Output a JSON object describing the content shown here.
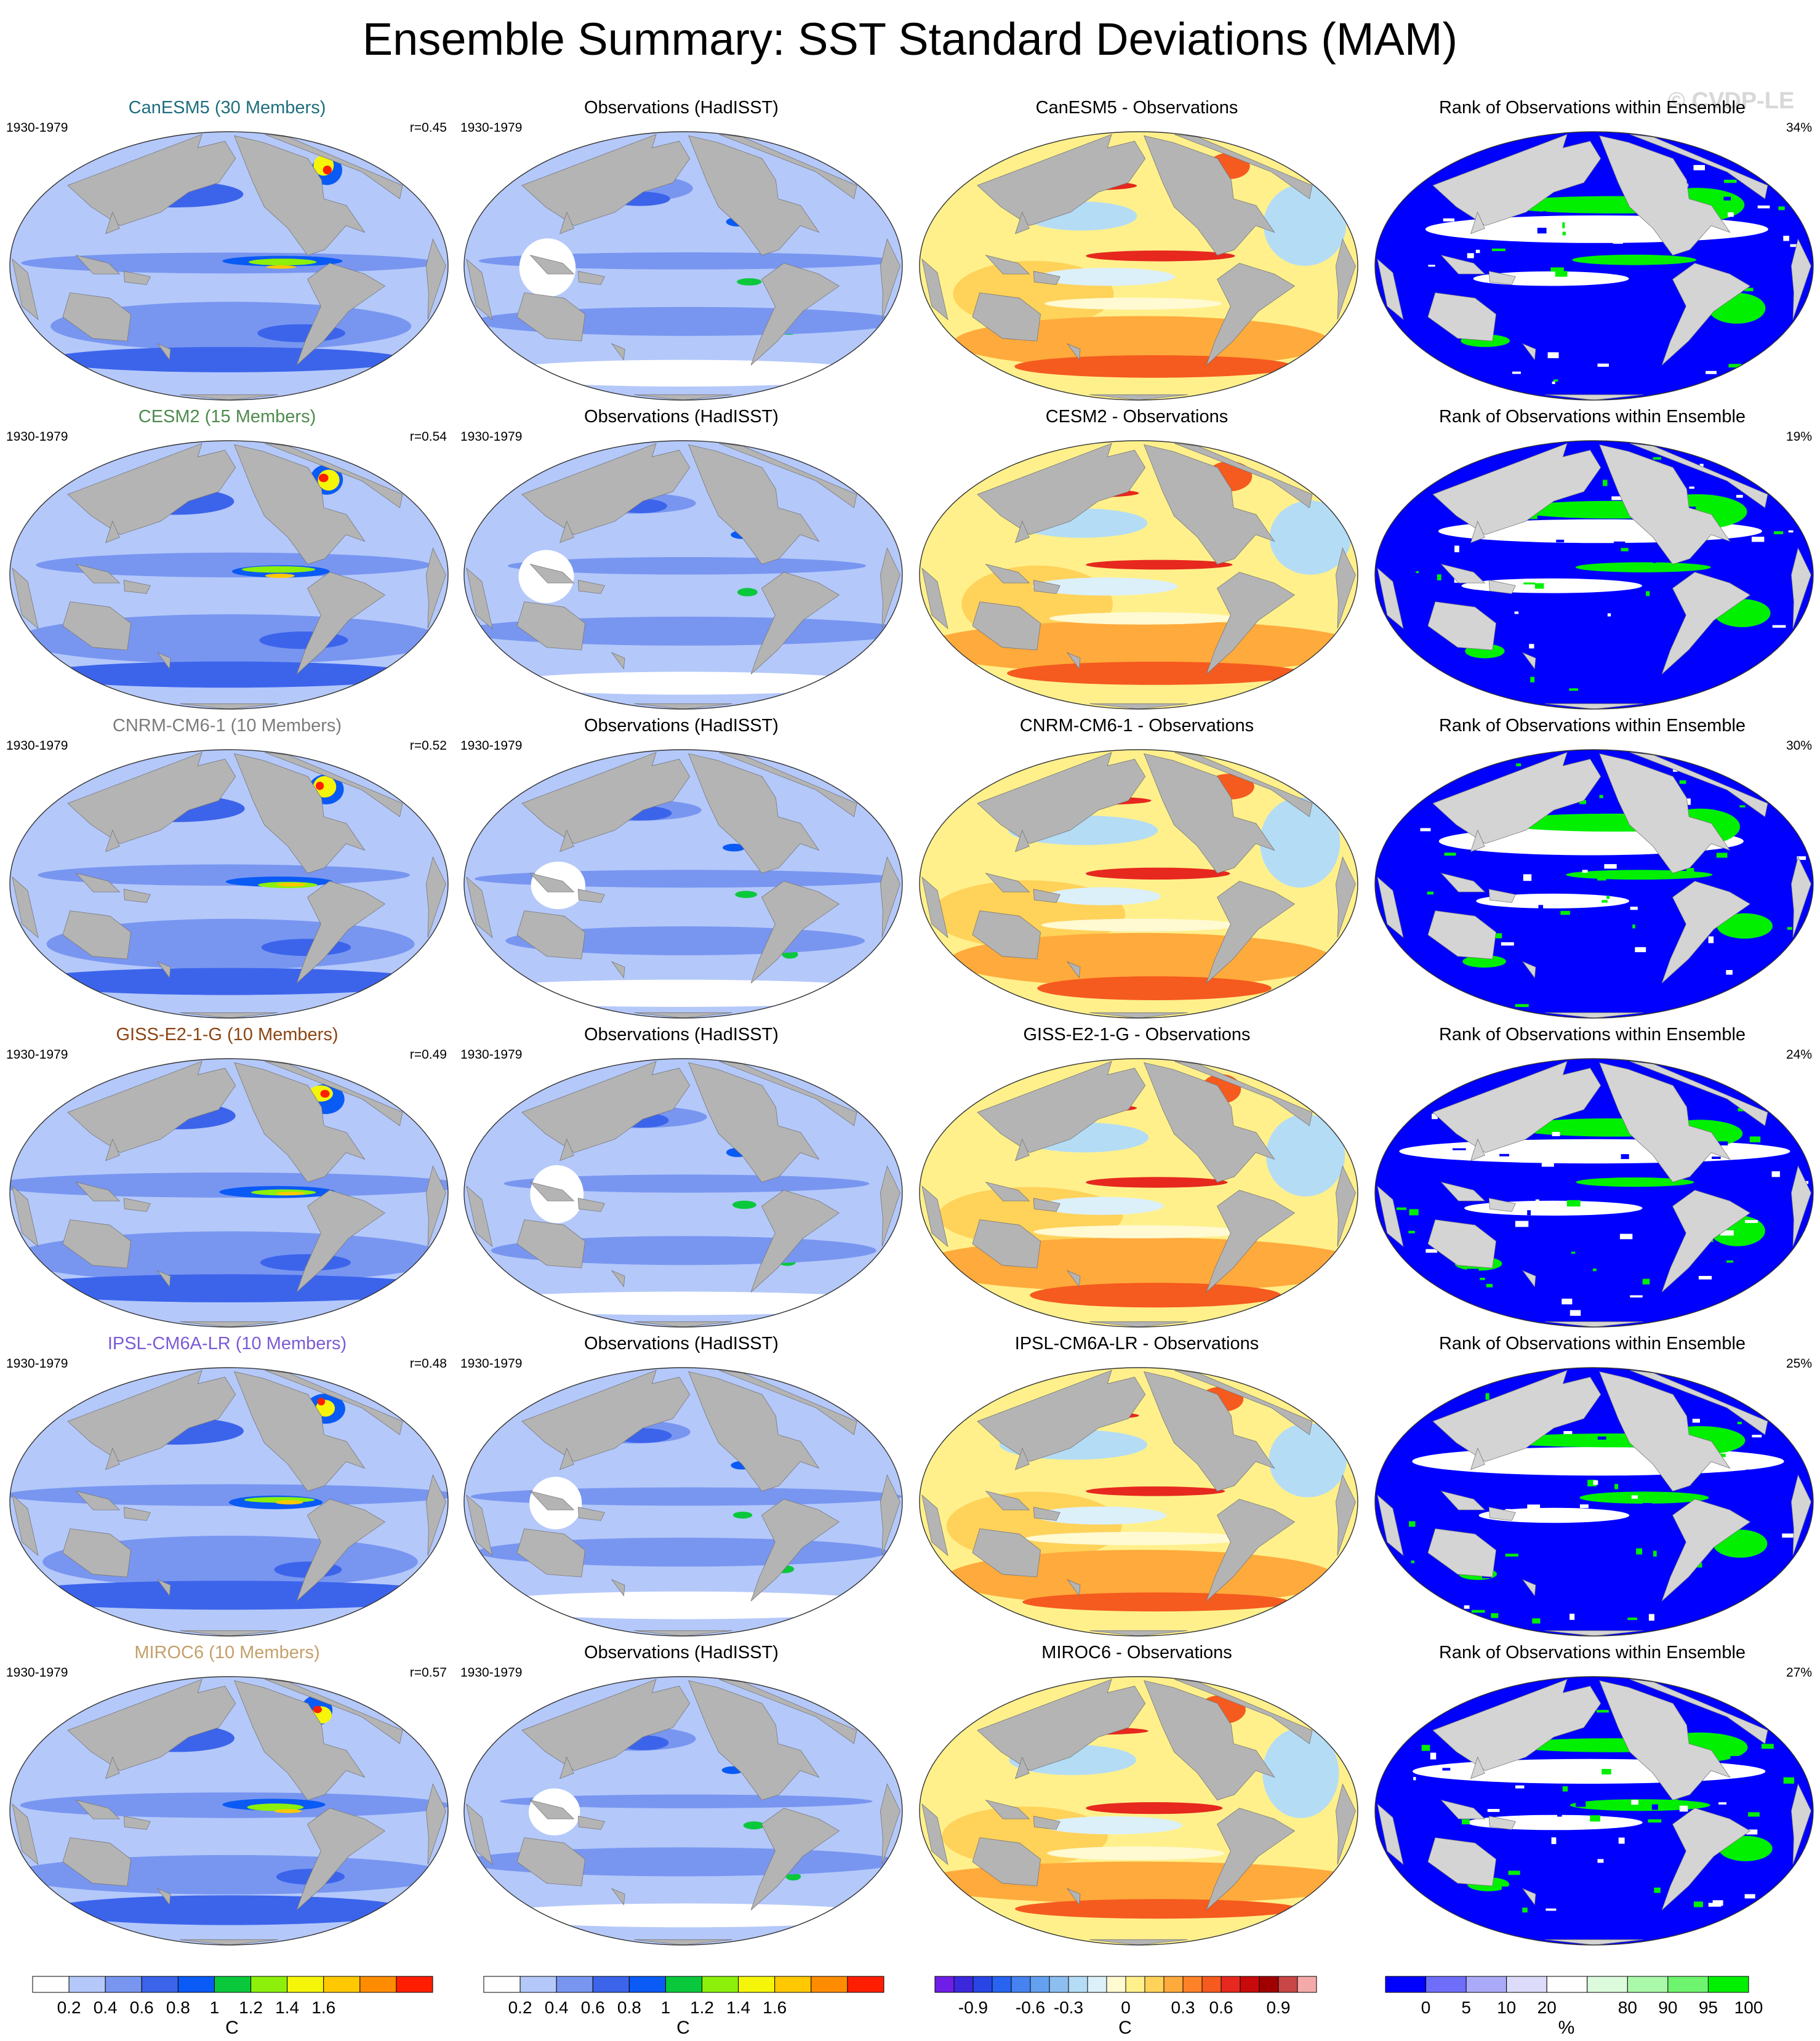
{
  "figure": {
    "title": "Ensemble Summary: SST Standard Deviations (MAM)",
    "watermark": "© CVDP-LE"
  },
  "colors": {
    "land": "#b4b4b4",
    "land_rank": "#d4d4d4",
    "model_title_colors": [
      "#1e6e7e",
      "#4e8a4e",
      "#7c7c7c",
      "#8b4513",
      "#7b5bd6",
      "#c4a06a"
    ]
  },
  "rows": [
    {
      "model": {
        "title": "CanESM5 (30 Members)",
        "years": "1930-1979",
        "r": "r=0.45"
      },
      "obs": {
        "title": "Observations (HadISST)",
        "years": "1930-1979"
      },
      "diff": {
        "title": "CanESM5 - Observations"
      },
      "rank": {
        "title": "Rank of Observations within Ensemble",
        "pct": "34%"
      }
    },
    {
      "model": {
        "title": "CESM2 (15 Members)",
        "years": "1930-1979",
        "r": "r=0.54"
      },
      "obs": {
        "title": "Observations (HadISST)",
        "years": "1930-1979"
      },
      "diff": {
        "title": "CESM2 - Observations"
      },
      "rank": {
        "title": "Rank of Observations within Ensemble",
        "pct": "19%"
      }
    },
    {
      "model": {
        "title": "CNRM-CM6-1 (10 Members)",
        "years": "1930-1979",
        "r": "r=0.52"
      },
      "obs": {
        "title": "Observations (HadISST)",
        "years": "1930-1979"
      },
      "diff": {
        "title": "CNRM-CM6-1 - Observations"
      },
      "rank": {
        "title": "Rank of Observations within Ensemble",
        "pct": "30%"
      }
    },
    {
      "model": {
        "title": "GISS-E2-1-G (10 Members)",
        "years": "1930-1979",
        "r": "r=0.49"
      },
      "obs": {
        "title": "Observations (HadISST)",
        "years": "1930-1979"
      },
      "diff": {
        "title": "GISS-E2-1-G - Observations"
      },
      "rank": {
        "title": "Rank of Observations within Ensemble",
        "pct": "24%"
      }
    },
    {
      "model": {
        "title": "IPSL-CM6A-LR (10 Members)",
        "years": "1930-1979",
        "r": "r=0.48"
      },
      "obs": {
        "title": "Observations (HadISST)",
        "years": "1930-1979"
      },
      "diff": {
        "title": "IPSL-CM6A-LR - Observations"
      },
      "rank": {
        "title": "Rank of Observations within Ensemble",
        "pct": "25%"
      }
    },
    {
      "model": {
        "title": "MIROC6 (10 Members)",
        "years": "1930-1979",
        "r": "r=0.57"
      },
      "obs": {
        "title": "Observations (HadISST)",
        "years": "1930-1979"
      },
      "diff": {
        "title": "MIROC6 - Observations"
      },
      "rank": {
        "title": "Rank of Observations within Ensemble",
        "pct": "27%"
      }
    }
  ],
  "colorbars": [
    {
      "unit": "C",
      "labels": [
        "0.2",
        "0.4",
        "0.6",
        "0.8",
        "1",
        "1.2",
        "1.4",
        "1.6"
      ],
      "colors": [
        "#ffffff",
        "#b4c8fa",
        "#7896f0",
        "#3c64eb",
        "#0a5af5",
        "#0ac83c",
        "#8cf00a",
        "#f5f50a",
        "#ffc800",
        "#ff8c00",
        "#ff1e00"
      ]
    },
    {
      "unit": "C",
      "labels": [
        "0.2",
        "0.4",
        "0.6",
        "0.8",
        "1",
        "1.2",
        "1.4",
        "1.6"
      ],
      "colors": [
        "#ffffff",
        "#b4c8fa",
        "#7896f0",
        "#3c64eb",
        "#0a5af5",
        "#0ac83c",
        "#8cf00a",
        "#f5f50a",
        "#ffc800",
        "#ff8c00",
        "#ff1e00"
      ]
    },
    {
      "unit": "C",
      "labels": [
        "-0.9",
        "-0.6",
        "-0.3",
        "0",
        "0.3",
        "0.6",
        "0.9"
      ],
      "colors": [
        "#6e1ee6",
        "#3c28dc",
        "#2846e6",
        "#2864f0",
        "#4682f0",
        "#64a0f0",
        "#8cbef0",
        "#b4dcf5",
        "#dcf0fa",
        "#fffad2",
        "#fff08c",
        "#ffd25a",
        "#ffaa3c",
        "#ff8228",
        "#f55a1e",
        "#e6281e",
        "#c80a0a",
        "#a00000",
        "#c84646",
        "#f5aaaa"
      ]
    },
    {
      "unit": "%",
      "labels": [
        "0",
        "5",
        "10",
        "20",
        "80",
        "90",
        "95",
        "100"
      ],
      "colors": [
        "#0000ff",
        "#6e6efa",
        "#aaaaf8",
        "#dcdcfa",
        "#ffffff",
        "#dcfadc",
        "#aaf8aa",
        "#6ef46e",
        "#00f000"
      ]
    }
  ]
}
